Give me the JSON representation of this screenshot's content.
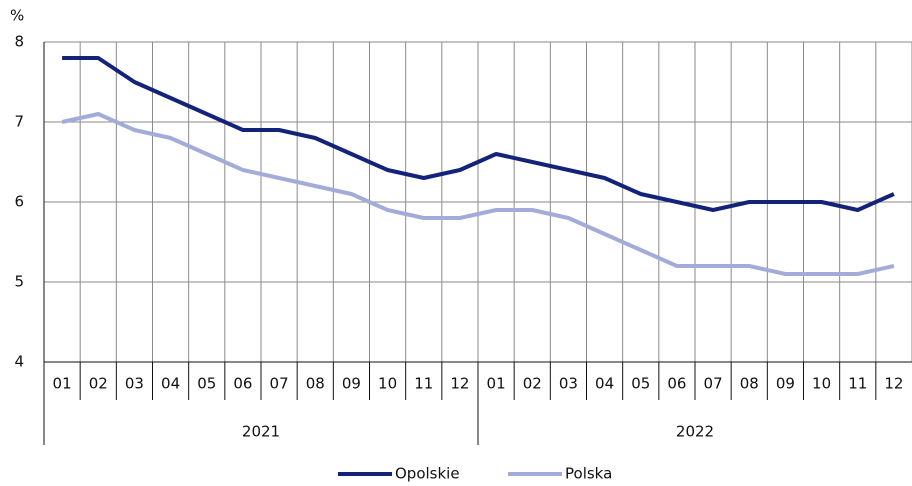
{
  "chart_data": {
    "type": "line",
    "y_axis_label": "%",
    "categories": [
      "01",
      "02",
      "03",
      "04",
      "05",
      "06",
      "07",
      "08",
      "09",
      "10",
      "11",
      "12",
      "01",
      "02",
      "03",
      "04",
      "05",
      "06",
      "07",
      "08",
      "09",
      "10",
      "11",
      "12"
    ],
    "groups": [
      "2021",
      "2022"
    ],
    "series": [
      {
        "name": "Opolskie",
        "color": "#14237a",
        "values": [
          7.8,
          7.8,
          7.5,
          7.3,
          7.1,
          6.9,
          6.9,
          6.8,
          6.6,
          6.4,
          6.3,
          6.4,
          6.6,
          6.5,
          6.4,
          6.3,
          6.1,
          6.0,
          5.9,
          6.0,
          6.0,
          6.0,
          5.9,
          6.1
        ]
      },
      {
        "name": "Polska",
        "color": "#a3acd9",
        "values": [
          7.0,
          7.1,
          6.9,
          6.8,
          6.6,
          6.4,
          6.3,
          6.2,
          6.1,
          5.9,
          5.8,
          5.8,
          5.9,
          5.9,
          5.8,
          5.6,
          5.4,
          5.2,
          5.2,
          5.2,
          5.1,
          5.1,
          5.1,
          5.2
        ]
      }
    ],
    "ylim": [
      4,
      8
    ],
    "yticks": [
      4,
      5,
      6,
      7,
      8
    ],
    "grid": true,
    "legend": "bottom"
  }
}
